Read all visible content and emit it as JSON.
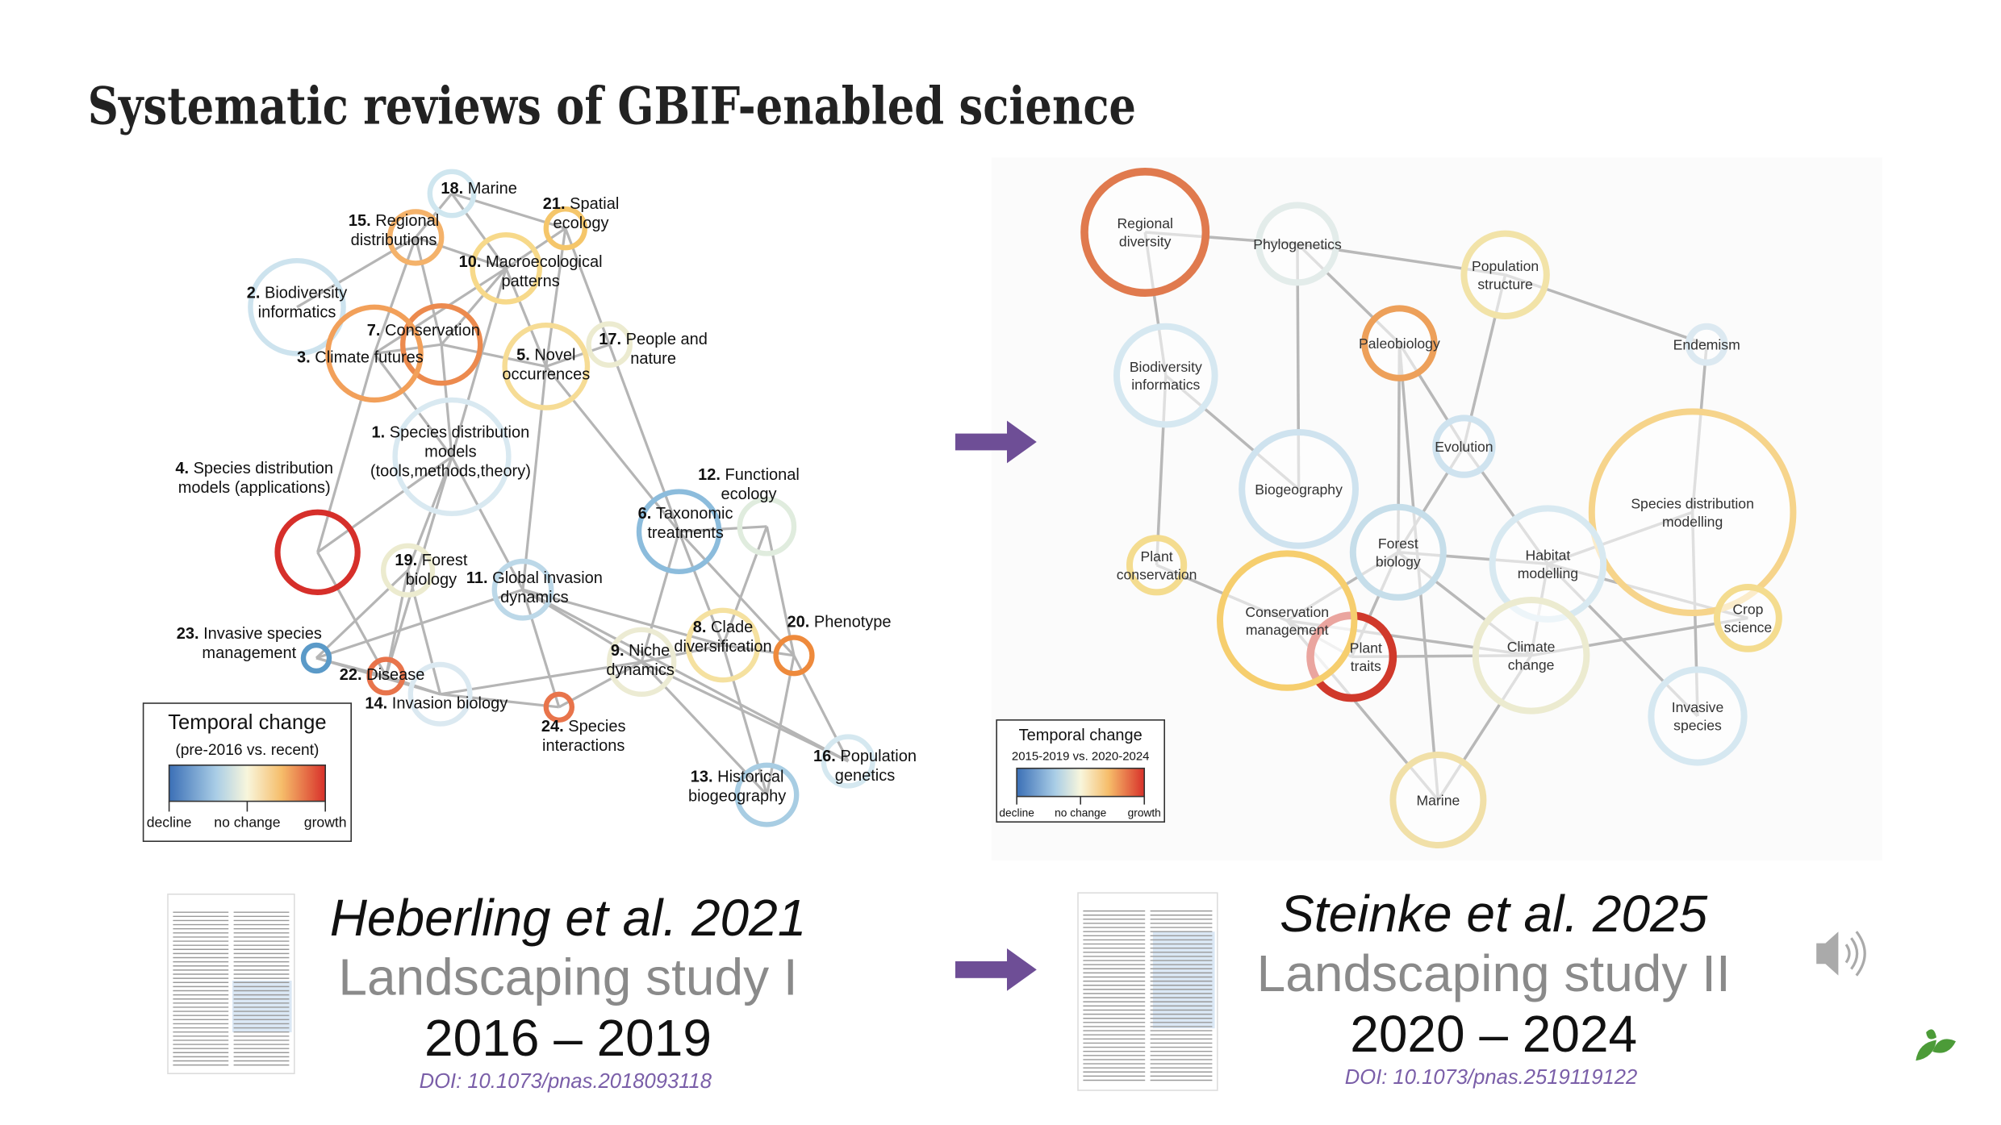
{
  "title": "Systematic reviews of GBIF-enabled science",
  "left_network": {
    "nodes": [
      {
        "num": "18.",
        "lines": [
          "Marine"
        ]
      },
      {
        "num": "15.",
        "lines": [
          "Regional",
          "distributions"
        ]
      },
      {
        "num": "21.",
        "lines": [
          "Spatial",
          "ecology"
        ]
      },
      {
        "num": "10.",
        "lines": [
          "Macroecological",
          "patterns"
        ]
      },
      {
        "num": "2.",
        "lines": [
          "Biodiversity",
          "informatics"
        ]
      },
      {
        "num": "7.",
        "lines": [
          "Conservation"
        ]
      },
      {
        "num": "3.",
        "lines": [
          "Climate futures"
        ]
      },
      {
        "num": "5.",
        "lines": [
          "Novel",
          "occurrences"
        ]
      },
      {
        "num": "17.",
        "lines": [
          "People and",
          "nature"
        ]
      },
      {
        "num": "1.",
        "lines": [
          "Species distribution",
          "models",
          "(tools,methods,theory)"
        ]
      },
      {
        "num": "4.",
        "lines": [
          "Species distribution",
          "models (applications)"
        ]
      },
      {
        "num": "12.",
        "lines": [
          "Functional",
          "ecology"
        ]
      },
      {
        "num": "6.",
        "lines": [
          "Taxonomic",
          "treatments"
        ]
      },
      {
        "num": "19.",
        "lines": [
          "Forest",
          "biology"
        ]
      },
      {
        "num": "11.",
        "lines": [
          "Global invasion",
          "dynamics"
        ]
      },
      {
        "num": "23.",
        "lines": [
          "Invasive species",
          "management"
        ]
      },
      {
        "num": "22.",
        "lines": [
          "Disease"
        ]
      },
      {
        "num": "14.",
        "lines": [
          "Invasion biology"
        ]
      },
      {
        "num": "8.",
        "lines": [
          "Clade",
          "diversification"
        ]
      },
      {
        "num": "9.",
        "lines": [
          "Niche",
          "dynamics"
        ]
      },
      {
        "num": "20.",
        "lines": [
          "Phenotype"
        ]
      },
      {
        "num": "24.",
        "lines": [
          "Species",
          "interactions"
        ]
      },
      {
        "num": "16.",
        "lines": [
          "Population",
          "genetics"
        ]
      },
      {
        "num": "13.",
        "lines": [
          "Historical",
          "biogeography"
        ]
      }
    ],
    "legend": {
      "title": "Temporal change",
      "subtitle": "(pre-2016 vs. recent)",
      "labels": [
        "decline",
        "no change",
        "growth"
      ]
    }
  },
  "right_network": {
    "nodes": [
      {
        "lines": [
          "Regional",
          "diversity"
        ]
      },
      {
        "lines": [
          "Phylogenetics"
        ]
      },
      {
        "lines": [
          "Population",
          "structure"
        ]
      },
      {
        "lines": [
          "Paleobiology"
        ]
      },
      {
        "lines": [
          "Endemism"
        ]
      },
      {
        "lines": [
          "Biodiversity",
          "informatics"
        ]
      },
      {
        "lines": [
          "Evolution"
        ]
      },
      {
        "lines": [
          "Biogeography"
        ]
      },
      {
        "lines": [
          "Species distribution",
          "modelling"
        ]
      },
      {
        "lines": [
          "Plant",
          "conservation"
        ]
      },
      {
        "lines": [
          "Forest",
          "biology"
        ]
      },
      {
        "lines": [
          "Habitat",
          "modelling"
        ]
      },
      {
        "lines": [
          "Conservation",
          "management"
        ]
      },
      {
        "lines": [
          "Crop",
          "science"
        ]
      },
      {
        "lines": [
          "Plant",
          "traits"
        ]
      },
      {
        "lines": [
          "Climate",
          "change"
        ]
      },
      {
        "lines": [
          "Invasive",
          "species"
        ]
      },
      {
        "lines": [
          "Marine"
        ]
      }
    ],
    "legend": {
      "title": "Temporal change",
      "subtitle": "2015-2019 vs. 2020-2024",
      "labels": [
        "decline",
        "no change",
        "growth"
      ]
    }
  },
  "studies": [
    {
      "authors": "Heberling et al. 2021",
      "name": "Landscaping study I",
      "years": "2016 – 2019",
      "doi": "DOI: 10.1073/pnas.2018093118"
    },
    {
      "authors": "Steinke et al. 2025",
      "name": "Landscaping study II",
      "years": "2020 – 2024",
      "doi": "DOI: 10.1073/pnas.2519119122"
    }
  ]
}
